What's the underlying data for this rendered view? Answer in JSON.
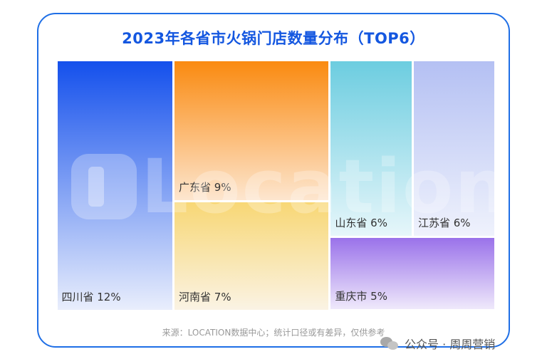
{
  "chart_data": {
    "type": "treemap",
    "title": "2023年各省市火锅门店数量分布（TOP6）",
    "items": [
      {
        "name": "四川省",
        "value": 12,
        "label": "四川省 12%",
        "color_top": "#1450ec",
        "color_bottom": "#e9eefc"
      },
      {
        "name": "广东省",
        "value": 9,
        "label": "广东省 9%",
        "color_top": "#fa8a10",
        "color_bottom": "#fde6cf"
      },
      {
        "name": "河南省",
        "value": 7,
        "label": "河南省 7%",
        "color_top": "#f8d775",
        "color_bottom": "#faf3e4"
      },
      {
        "name": "山东省",
        "value": 6,
        "label": "山东省 6%",
        "color_top": "#6ccde0",
        "color_bottom": "#e6f6fa"
      },
      {
        "name": "江苏省",
        "value": 6,
        "label": "江苏省 6%",
        "color_top": "#b4c0f3",
        "color_bottom": "#eff2fc"
      },
      {
        "name": "重庆市",
        "value": 5,
        "label": "重庆市 5%",
        "color_top": "#9a72ea",
        "color_bottom": "#efe9fb"
      }
    ]
  },
  "watermark": "Location",
  "source": "来源：LOCATION数据中心；统计口径或有差异，仅供参考",
  "footer": {
    "label": "公众号 · 周周营销",
    "icon": "wechat-icon"
  }
}
